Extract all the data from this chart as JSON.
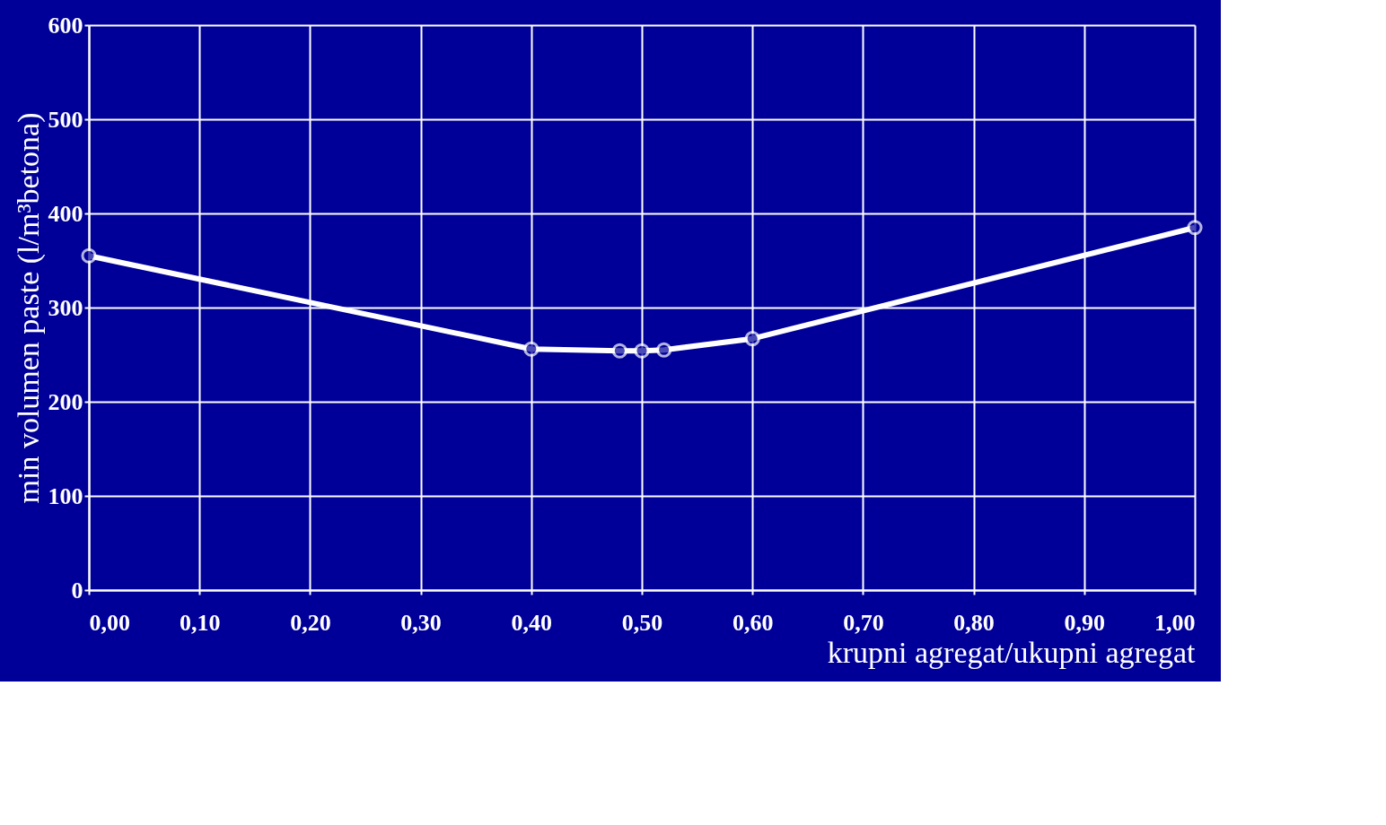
{
  "chart_data": {
    "type": "line",
    "xlabel": "krupni agregat/ukupni agregat",
    "ylabel": "min volumen paste (l/m³betona)",
    "x": [
      0.0,
      0.4,
      0.48,
      0.5,
      0.52,
      0.6,
      1.0
    ],
    "series": [
      {
        "color": "#ffffff",
        "values": [
          355,
          256,
          254,
          254,
          255,
          267,
          385
        ]
      }
    ],
    "xlim": [
      0,
      1
    ],
    "ylim": [
      0,
      600
    ],
    "xticks": [
      {
        "value": 0,
        "label": "0,00"
      },
      {
        "value": 0.1,
        "label": "0,10"
      },
      {
        "value": 0.2,
        "label": "0,20"
      },
      {
        "value": 0.3,
        "label": "0,30"
      },
      {
        "value": 0.4,
        "label": "0,40"
      },
      {
        "value": 0.5,
        "label": "0,50"
      },
      {
        "value": 0.6,
        "label": "0,60"
      },
      {
        "value": 0.7,
        "label": "0,70"
      },
      {
        "value": 0.8,
        "label": "0,80"
      },
      {
        "value": 0.9,
        "label": "0,90"
      },
      {
        "value": 1.0,
        "label": "1,00"
      }
    ],
    "yticks": [
      0,
      100,
      200,
      300,
      400,
      500,
      600
    ],
    "grid": true,
    "marker": "circle",
    "line_style": "solid"
  }
}
